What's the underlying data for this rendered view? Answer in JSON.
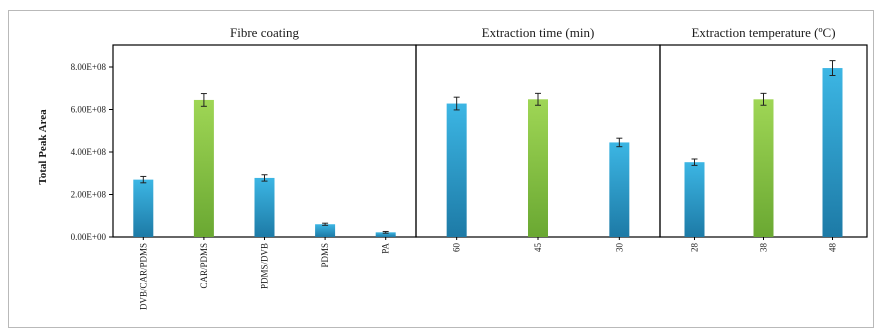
{
  "colors": {
    "blue": "#2a9fd0",
    "green": "#86c441",
    "error_bar": "#222222",
    "axis": "#000000"
  },
  "chart_data": {
    "type": "bar",
    "ylabel": "Total Peak Area",
    "ylim": [
      0,
      800000000
    ],
    "yticks": [
      "0.00E+00",
      "2.00E+08",
      "4.00E+08",
      "6.00E+08",
      "8.00E+08"
    ],
    "ytick_values": [
      0,
      200000000,
      400000000,
      600000000,
      800000000
    ],
    "grid": false,
    "panels": [
      {
        "title": "Fibre coating",
        "categories": [
          "DVB/CAR/PDMS",
          "CAR/PDMS",
          "PDMS/DVB",
          "PDMS",
          "PA"
        ],
        "values": [
          270000000,
          645000000,
          278000000,
          60000000,
          22000000
        ],
        "errors": [
          15000000,
          30000000,
          15000000,
          5000000,
          4000000
        ],
        "colors": [
          "blue",
          "green",
          "blue",
          "blue",
          "blue"
        ]
      },
      {
        "title": "Extraction time (min)",
        "categories": [
          "60",
          "45",
          "30"
        ],
        "values": [
          628000000,
          648000000,
          445000000
        ],
        "errors": [
          30000000,
          28000000,
          20000000
        ],
        "colors": [
          "blue",
          "green",
          "blue"
        ]
      },
      {
        "title": "Extraction temperature (ºC)",
        "categories": [
          "28",
          "38",
          "48"
        ],
        "values": [
          352000000,
          648000000,
          795000000
        ],
        "errors": [
          15000000,
          28000000,
          35000000
        ],
        "colors": [
          "blue",
          "green",
          "blue"
        ]
      }
    ]
  }
}
